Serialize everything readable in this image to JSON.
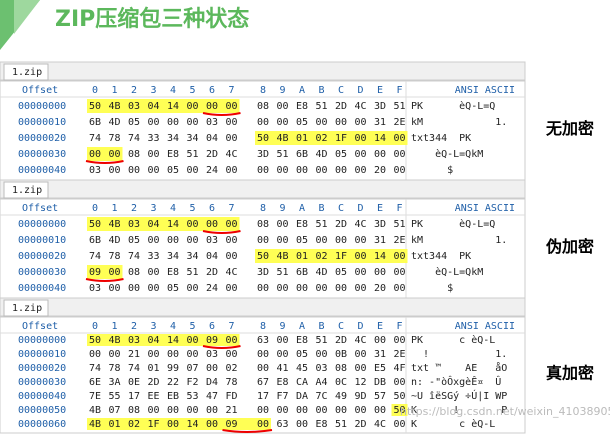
{
  "title": "ZIP压缩包三种状态",
  "watermark": "https://blog.csdn.net/weixin_41038905",
  "panels": [
    {
      "tab": "1.zip",
      "offset_header": "Offset",
      "columns": [
        "0",
        "1",
        "2",
        "3",
        "4",
        "5",
        "6",
        "7",
        "8",
        "9",
        "A",
        "B",
        "C",
        "D",
        "E",
        "F"
      ],
      "ascii_header": "ANSI ASCII",
      "label": "无加密",
      "rows": [
        {
          "offset": "00000000",
          "bytes": [
            "50",
            "4B",
            "03",
            "04",
            "14",
            "00",
            "00",
            "00",
            "08",
            "00",
            "E8",
            "51",
            "2D",
            "4C",
            "3D",
            "51"
          ],
          "ascii": "PK      èQ-L=Q"
        },
        {
          "offset": "00000010",
          "bytes": [
            "6B",
            "4D",
            "05",
            "00",
            "00",
            "00",
            "03",
            "00",
            "00",
            "00",
            "05",
            "00",
            "00",
            "00",
            "31",
            "2E"
          ],
          "ascii": "kM            1."
        },
        {
          "offset": "00000020",
          "bytes": [
            "74",
            "78",
            "74",
            "33",
            "34",
            "34",
            "04",
            "00",
            "50",
            "4B",
            "01",
            "02",
            "1F",
            "00",
            "14",
            "00"
          ],
          "ascii": "txt344  PK"
        },
        {
          "offset": "00000030",
          "bytes": [
            "00",
            "00",
            "08",
            "00",
            "E8",
            "51",
            "2D",
            "4C",
            "3D",
            "51",
            "6B",
            "4D",
            "05",
            "00",
            "00",
            "00"
          ],
          "ascii": "    èQ-L=QkM"
        },
        {
          "offset": "00000040",
          "bytes": [
            "03",
            "00",
            "00",
            "00",
            "05",
            "00",
            "24",
            "00",
            "00",
            "00",
            "00",
            "00",
            "00",
            "00",
            "20",
            "00"
          ],
          "ascii": "      $"
        }
      ],
      "highlights": [
        [
          0,
          0,
          7
        ],
        [
          2,
          8,
          15
        ],
        [
          3,
          0,
          1
        ]
      ],
      "underlines": [
        [
          0,
          6,
          7
        ],
        [
          3,
          0,
          1
        ]
      ]
    },
    {
      "tab": "1.zip",
      "offset_header": "Offset",
      "columns": [
        "0",
        "1",
        "2",
        "3",
        "4",
        "5",
        "6",
        "7",
        "8",
        "9",
        "A",
        "B",
        "C",
        "D",
        "E",
        "F"
      ],
      "ascii_header": "ANSI ASCII",
      "label": "伪加密",
      "rows": [
        {
          "offset": "00000000",
          "bytes": [
            "50",
            "4B",
            "03",
            "04",
            "14",
            "00",
            "00",
            "00",
            "08",
            "00",
            "E8",
            "51",
            "2D",
            "4C",
            "3D",
            "51"
          ],
          "ascii": "PK      èQ-L=Q"
        },
        {
          "offset": "00000010",
          "bytes": [
            "6B",
            "4D",
            "05",
            "00",
            "00",
            "00",
            "03",
            "00",
            "00",
            "00",
            "05",
            "00",
            "00",
            "00",
            "31",
            "2E"
          ],
          "ascii": "kM            1."
        },
        {
          "offset": "00000020",
          "bytes": [
            "74",
            "78",
            "74",
            "33",
            "34",
            "34",
            "04",
            "00",
            "50",
            "4B",
            "01",
            "02",
            "1F",
            "00",
            "14",
            "00"
          ],
          "ascii": "txt344  PK"
        },
        {
          "offset": "00000030",
          "bytes": [
            "09",
            "00",
            "08",
            "00",
            "E8",
            "51",
            "2D",
            "4C",
            "3D",
            "51",
            "6B",
            "4D",
            "05",
            "00",
            "00",
            "00"
          ],
          "ascii": "    èQ-L=QkM"
        },
        {
          "offset": "00000040",
          "bytes": [
            "03",
            "00",
            "00",
            "00",
            "05",
            "00",
            "24",
            "00",
            "00",
            "00",
            "00",
            "00",
            "00",
            "00",
            "20",
            "00"
          ],
          "ascii": "      $"
        }
      ],
      "highlights": [
        [
          0,
          0,
          7
        ],
        [
          2,
          8,
          15
        ],
        [
          3,
          0,
          1
        ]
      ],
      "underlines": [
        [
          0,
          6,
          7
        ],
        [
          3,
          0,
          1
        ]
      ]
    },
    {
      "tab": "1.zip",
      "offset_header": "Offset",
      "columns": [
        "0",
        "1",
        "2",
        "3",
        "4",
        "5",
        "6",
        "7",
        "8",
        "9",
        "A",
        "B",
        "C",
        "D",
        "E",
        "F"
      ],
      "ascii_header": "ANSI ASCII",
      "label": "真加密",
      "rows": [
        {
          "offset": "00000000",
          "bytes": [
            "50",
            "4B",
            "03",
            "04",
            "14",
            "00",
            "09",
            "00",
            "63",
            "00",
            "E8",
            "51",
            "2D",
            "4C",
            "00",
            "00"
          ],
          "ascii": "PK      c èQ-L"
        },
        {
          "offset": "00000010",
          "bytes": [
            "00",
            "00",
            "21",
            "00",
            "00",
            "00",
            "03",
            "00",
            "00",
            "00",
            "05",
            "00",
            "0B",
            "00",
            "31",
            "2E"
          ],
          "ascii": "  !           1."
        },
        {
          "offset": "00000020",
          "bytes": [
            "74",
            "78",
            "74",
            "01",
            "99",
            "07",
            "00",
            "02",
            "00",
            "41",
            "45",
            "03",
            "08",
            "00",
            "E5",
            "4F"
          ],
          "ascii": "txt ™    AE   åO"
        },
        {
          "offset": "00000030",
          "bytes": [
            "6E",
            "3A",
            "0E",
            "2D",
            "22",
            "F2",
            "D4",
            "78",
            "67",
            "E8",
            "CA",
            "A4",
            "0C",
            "12",
            "DB",
            "00"
          ],
          "ascii": "n: -\"òÔxgèÊ¤  Û"
        },
        {
          "offset": "00000040",
          "bytes": [
            "7E",
            "55",
            "17",
            "EE",
            "EB",
            "53",
            "47",
            "FD",
            "17",
            "F7",
            "DA",
            "7C",
            "49",
            "9D",
            "57",
            "50"
          ],
          "ascii": "~U îëSGý ÷Ú|I WP"
        },
        {
          "offset": "00000050",
          "bytes": [
            "4B",
            "07",
            "08",
            "00",
            "00",
            "00",
            "00",
            "21",
            "00",
            "00",
            "00",
            "00",
            "00",
            "00",
            "00",
            "50"
          ],
          "ascii": "K      !       P"
        },
        {
          "offset": "00000060",
          "bytes": [
            "4B",
            "01",
            "02",
            "1F",
            "00",
            "14",
            "00",
            "09",
            "00",
            "63",
            "00",
            "E8",
            "51",
            "2D",
            "4C",
            "00"
          ],
          "ascii": "K       c èQ-L"
        }
      ],
      "highlights": [
        [
          0,
          0,
          7
        ],
        [
          5,
          15,
          15
        ],
        [
          6,
          0,
          8
        ]
      ],
      "underlines": [
        [
          0,
          6,
          7
        ],
        [
          6,
          7,
          8
        ]
      ]
    }
  ]
}
